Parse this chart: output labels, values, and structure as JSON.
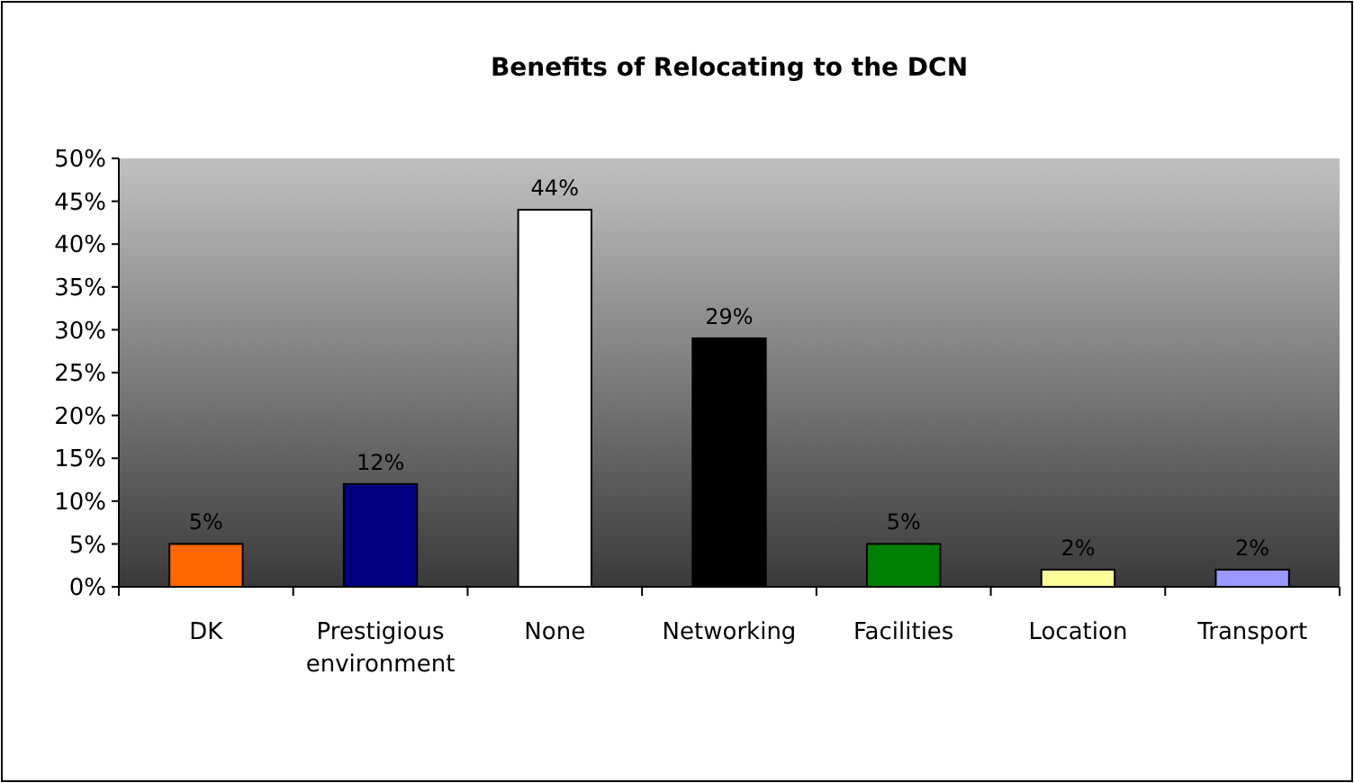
{
  "chart_data": {
    "type": "bar",
    "title": "Benefits of Relocating to the DCN",
    "categories": [
      "DK",
      "Prestigious environment",
      "None",
      "Networking",
      "Facilities",
      "Location",
      "Transport"
    ],
    "values": [
      5,
      12,
      44,
      29,
      5,
      2,
      2
    ],
    "colors": [
      "#ff6600",
      "#000080",
      "#ffffff",
      "#000000",
      "#008000",
      "#ffff99",
      "#9999ff"
    ],
    "value_labels": [
      "5%",
      "12%",
      "44%",
      "29%",
      "5%",
      "2%",
      "2%"
    ],
    "ylim": [
      0,
      50
    ],
    "yticks": [
      {
        "value": 0,
        "label": "0%"
      },
      {
        "value": 5,
        "label": "5%"
      },
      {
        "value": 10,
        "label": "10%"
      },
      {
        "value": 15,
        "label": "15%"
      },
      {
        "value": 20,
        "label": "20%"
      },
      {
        "value": 25,
        "label": "25%"
      },
      {
        "value": 30,
        "label": "30%"
      },
      {
        "value": 35,
        "label": "35%"
      },
      {
        "value": 40,
        "label": "40%"
      },
      {
        "value": 45,
        "label": "45%"
      },
      {
        "value": 50,
        "label": "50%"
      }
    ]
  }
}
